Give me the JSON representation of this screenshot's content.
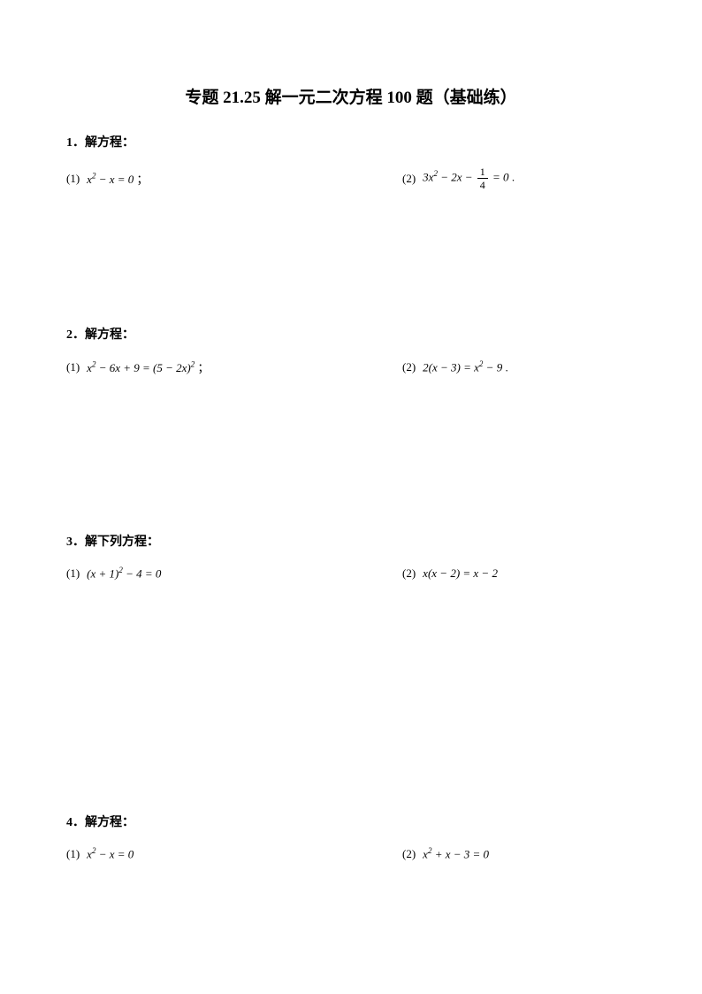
{
  "title": "专题 21.25 解一元二次方程 100 题（基础练）",
  "problems": [
    {
      "number": "1",
      "header": "1．解方程：",
      "sub1_label": "(1)",
      "sub1_eq": "x² − x = 0 ；",
      "sub2_label": "(2)",
      "sub2_eq": "3x² − 2x − 1/4 = 0 ."
    },
    {
      "number": "2",
      "header": "2．解方程：",
      "sub1_label": "(1)",
      "sub1_eq": "x² − 6x + 9 = (5 − 2x)² ；",
      "sub2_label": "(2)",
      "sub2_eq": "2(x − 3) = x² − 9 ."
    },
    {
      "number": "3",
      "header": "3．解下列方程：",
      "sub1_label": "(1)",
      "sub1_eq": "(x + 1)² − 4 = 0",
      "sub2_label": "(2)",
      "sub2_eq": "x(x − 2) = x − 2"
    },
    {
      "number": "4",
      "header": "4．解方程：",
      "sub1_label": "(1)",
      "sub1_eq": "x² − x = 0",
      "sub2_label": "(2)",
      "sub2_eq": "x² + x − 3 = 0"
    }
  ],
  "colors": {
    "background": "#ffffff",
    "text": "#000000"
  },
  "typography": {
    "title_fontsize": 19,
    "header_fontsize": 14,
    "body_fontsize": 13
  }
}
